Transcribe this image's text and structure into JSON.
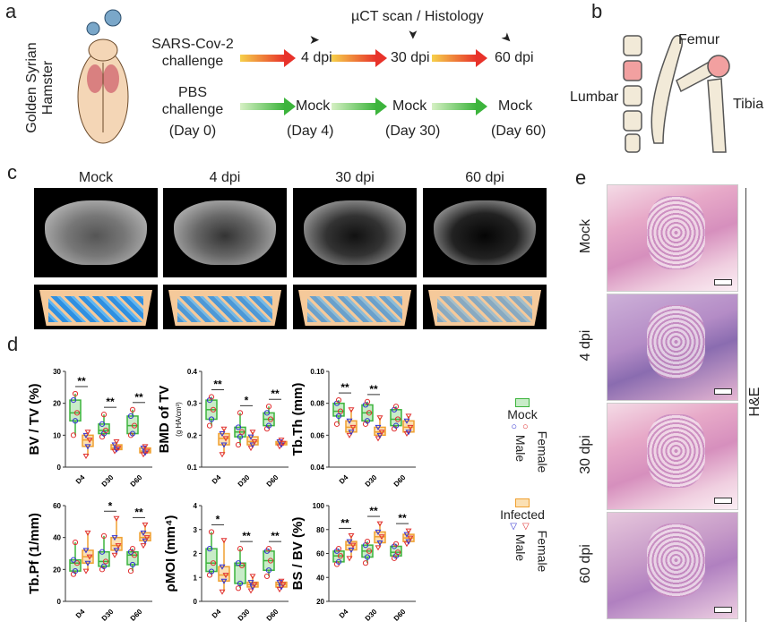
{
  "panel_labels": {
    "a": "a",
    "b": "b",
    "c": "c",
    "d": "d",
    "e": "e"
  },
  "panel_a": {
    "animal": "Golden Syrian Hamster",
    "scan_label": "µCT scan / Histology",
    "infected_group": "SARS-Cov-2 challenge",
    "infected_group_line1": "SARS-Cov-2",
    "infected_group_line2": "challenge",
    "control_group_line1": "PBS",
    "control_group_line2": "challenge",
    "day0": "(Day 0)",
    "infected_timepoints": [
      "4 dpi",
      "30 dpi",
      "60 dpi"
    ],
    "control_timepoints": [
      "Mock",
      "Mock",
      "Mock"
    ],
    "control_days": [
      "(Day 4)",
      "(Day 30)",
      "(Day 60)"
    ],
    "colors": {
      "infected_arrow": "#e8322a",
      "control_arrow": "#3cb43c"
    }
  },
  "panel_b": {
    "labels": {
      "femur": "Femur",
      "lumbar": "Lumbar",
      "tibia": "Tibia"
    }
  },
  "panel_c": {
    "columns": [
      "Mock",
      "4 dpi",
      "30 dpi",
      "60 dpi"
    ]
  },
  "panel_e": {
    "rows": [
      "Mock",
      "4 dpi",
      "30 dpi",
      "60 dpi"
    ],
    "stain": "H&E"
  },
  "legend": {
    "mock": "Mock",
    "infected": "Infected",
    "female": "Female",
    "male": "Male",
    "colors": {
      "mock": "#3cb43c",
      "infected": "#f0a030",
      "female": "#e03030",
      "male": "#3030d0"
    }
  },
  "chart_data": [
    {
      "type": "box",
      "ylabel": "BV / TV (%)",
      "ylim": [
        0,
        30
      ],
      "yticks": [
        "0",
        "10",
        "20",
        "30"
      ],
      "categories": [
        "D4",
        "D30",
        "D60"
      ],
      "mock": [
        [
          10,
          14.5,
          17,
          21,
          23
        ],
        [
          9.5,
          10.5,
          11.5,
          13.5,
          16.5
        ],
        [
          10,
          10.5,
          13,
          16,
          18
        ]
      ],
      "infected": [
        [
          3.5,
          6.5,
          8.5,
          10,
          11
        ],
        [
          5,
          5.5,
          6,
          7,
          8
        ],
        [
          4,
          4.5,
          5,
          6,
          6.5
        ]
      ],
      "significance": [
        "**",
        "**",
        "**"
      ]
    },
    {
      "type": "box",
      "ylabel": "BMD of TV",
      "ylabel_unit": "(g HA/cm³)",
      "ylim": [
        0.1,
        0.4
      ],
      "yticks": [
        "0.1",
        "0.2",
        "0.3",
        "0.4"
      ],
      "categories": [
        "D4",
        "D30",
        "D60"
      ],
      "mock": [
        [
          0.23,
          0.25,
          0.28,
          0.31,
          0.32
        ],
        [
          0.17,
          0.195,
          0.21,
          0.225,
          0.27
        ],
        [
          0.22,
          0.23,
          0.25,
          0.27,
          0.29
        ]
      ],
      "infected": [
        [
          0.14,
          0.17,
          0.19,
          0.205,
          0.22
        ],
        [
          0.16,
          0.17,
          0.18,
          0.195,
          0.21
        ],
        [
          0.165,
          0.17,
          0.175,
          0.18,
          0.185
        ]
      ],
      "significance": [
        "**",
        "*",
        "**"
      ]
    },
    {
      "type": "box",
      "ylabel": "Tb.Th (mm)",
      "ylim": [
        0.04,
        0.1
      ],
      "yticks": [
        "0.04",
        "0.06",
        "0.08",
        "0.10"
      ],
      "categories": [
        "D4",
        "D30",
        "D60"
      ],
      "mock": [
        [
          0.067,
          0.072,
          0.075,
          0.08,
          0.082
        ],
        [
          0.067,
          0.069,
          0.074,
          0.079,
          0.081
        ],
        [
          0.064,
          0.066,
          0.07,
          0.076,
          0.078
        ]
      ],
      "infected": [
        [
          0.06,
          0.062,
          0.065,
          0.069,
          0.076
        ],
        [
          0.058,
          0.06,
          0.062,
          0.065,
          0.071
        ],
        [
          0.061,
          0.062,
          0.065,
          0.069,
          0.072
        ]
      ],
      "significance": [
        "**",
        "**",
        ""
      ]
    },
    {
      "type": "box",
      "ylabel": "Tb.Pf (1/mm)",
      "ylim": [
        0,
        60
      ],
      "yticks": [
        "0",
        "20",
        "40",
        "60"
      ],
      "categories": [
        "D4",
        "D30",
        "D60"
      ],
      "mock": [
        [
          17,
          19,
          24,
          26,
          37
        ],
        [
          20,
          22,
          25,
          31,
          41
        ],
        [
          19,
          23,
          29,
          31,
          33
        ]
      ],
      "infected": [
        [
          19,
          24,
          28,
          32,
          43
        ],
        [
          29,
          32,
          35,
          40,
          52
        ],
        [
          35,
          38,
          40,
          43,
          48
        ]
      ],
      "significance": [
        "",
        "*",
        "**"
      ]
    },
    {
      "type": "box",
      "ylabel": "ρMOI (mm⁴)",
      "ylim": [
        0,
        4
      ],
      "yticks": [
        "0",
        "1",
        "2",
        "3",
        "4"
      ],
      "categories": [
        "D4",
        "D30",
        "D60"
      ],
      "mock": [
        [
          1.1,
          1.25,
          1.6,
          2.2,
          2.9
        ],
        [
          0.55,
          0.75,
          1.5,
          1.6,
          2.2
        ],
        [
          1.05,
          1.3,
          1.7,
          2.1,
          2.2
        ]
      ],
      "infected": [
        [
          0.4,
          0.85,
          1.1,
          1.45,
          2.55
        ],
        [
          0.45,
          0.6,
          0.7,
          0.8,
          1.05
        ],
        [
          0.5,
          0.6,
          0.7,
          0.8,
          0.85
        ]
      ],
      "significance": [
        "*",
        "**",
        "**"
      ]
    },
    {
      "type": "box",
      "ylabel": "BS / BV (%)",
      "ylim": [
        20,
        100
      ],
      "yticks": [
        "20",
        "40",
        "60",
        "80",
        "100"
      ],
      "categories": [
        "D4",
        "D30",
        "D60"
      ],
      "mock": [
        [
          51,
          53,
          58,
          62,
          64
        ],
        [
          52,
          57,
          62,
          67,
          70
        ],
        [
          56,
          58,
          61,
          66,
          68
        ]
      ],
      "infected": [
        [
          56,
          63,
          67,
          70,
          75
        ],
        [
          65,
          69,
          74,
          78,
          85
        ],
        [
          68,
          70,
          73,
          76,
          79
        ]
      ],
      "significance": [
        "**",
        "**",
        "**"
      ]
    }
  ]
}
